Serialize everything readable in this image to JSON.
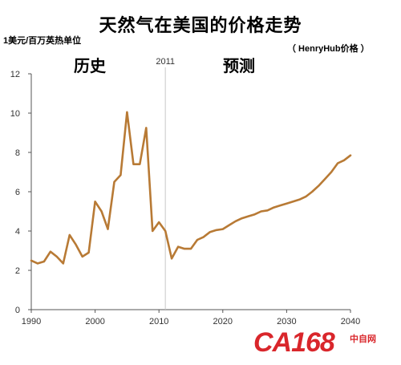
{
  "header": {
    "unit": "1美元/百万英热单位",
    "source": "（ HenryHub价格 ）",
    "history_label": "历史",
    "forecast_label": "预测"
  },
  "logo": {
    "main": "CA168",
    "side_top": "中自网",
    "side_bottom": ""
  },
  "colors": {
    "line": "#b87a35",
    "divider": "#c8c8c8",
    "axis": "#555555"
  },
  "chart_data": {
    "type": "line",
    "title": "天然气在美国的价格走势",
    "xlabel": "",
    "ylabel": "1美元/百万英热单位",
    "xlim": [
      1990,
      2040
    ],
    "ylim": [
      0,
      12
    ],
    "x_ticks": [
      1990,
      2000,
      2010,
      2020,
      2030,
      2040
    ],
    "y_ticks": [
      0,
      2,
      4,
      6,
      8,
      10,
      12
    ],
    "divider_year": 2011,
    "divider_label": "2011",
    "grid": false,
    "series": [
      {
        "name": "",
        "x": [
          1990,
          1991,
          1992,
          1993,
          1994,
          1995,
          1996,
          1997,
          1998,
          1999,
          2000,
          2001,
          2002,
          2003,
          2004,
          2005,
          2006,
          2007,
          2008,
          2009,
          2010,
          2011,
          2012,
          2013,
          2014,
          2015,
          2016,
          2017,
          2018,
          2019,
          2020,
          2021,
          2022,
          2023,
          2024,
          2025,
          2026,
          2027,
          2028,
          2029,
          2030,
          2031,
          2032,
          2033,
          2034,
          2035,
          2036,
          2037,
          2038,
          2039,
          2040
        ],
        "y": [
          2.5,
          2.35,
          2.45,
          2.95,
          2.7,
          2.35,
          3.8,
          3.3,
          2.7,
          2.9,
          5.5,
          5.0,
          4.1,
          6.5,
          6.85,
          10.05,
          7.4,
          7.4,
          9.25,
          4.0,
          4.45,
          4.0,
          2.6,
          3.2,
          3.1,
          3.1,
          3.55,
          3.7,
          3.95,
          4.05,
          4.1,
          4.3,
          4.5,
          4.65,
          4.75,
          4.85,
          5.0,
          5.05,
          5.2,
          5.3,
          5.4,
          5.5,
          5.6,
          5.75,
          6.0,
          6.3,
          6.65,
          7.0,
          7.45,
          7.6,
          7.85
        ]
      }
    ]
  }
}
